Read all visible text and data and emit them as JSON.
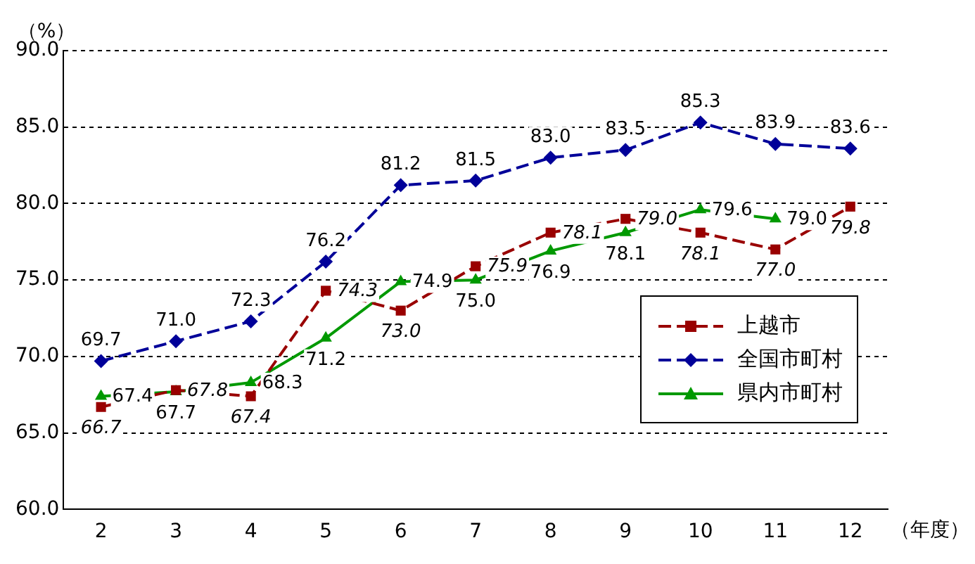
{
  "chart_data": {
    "type": "line",
    "ylabel": "（%）",
    "xlabel": "（年度）",
    "categories": [
      "2",
      "3",
      "4",
      "5",
      "6",
      "7",
      "8",
      "9",
      "10",
      "11",
      "12"
    ],
    "series": [
      {
        "name": "上越市",
        "color": "#990000",
        "marker": "square",
        "line_style": "dashed",
        "values": [
          66.7,
          67.8,
          67.4,
          74.3,
          73.0,
          75.9,
          78.1,
          79.0,
          78.1,
          77.0,
          79.8
        ],
        "value_labels": [
          "66.7",
          "67.8",
          "67.4",
          "74.3",
          "73.0",
          "75.9",
          "78.1",
          "79.0",
          "78.1",
          "77.0",
          "79.8"
        ]
      },
      {
        "name": "全国市町村",
        "color": "#000099",
        "marker": "diamond",
        "line_style": "dashed",
        "values": [
          69.7,
          71.0,
          72.3,
          76.2,
          81.2,
          81.5,
          83.0,
          83.5,
          85.3,
          83.9,
          83.6
        ],
        "value_labels": [
          "69.7",
          "71.0",
          "72.3",
          "76.2",
          "81.2",
          "81.5",
          "83.0",
          "83.5",
          "85.3",
          "83.9",
          "83.6"
        ]
      },
      {
        "name": "県内市町村",
        "color": "#009900",
        "marker": "triangle",
        "line_style": "solid",
        "values": [
          67.4,
          67.7,
          68.3,
          71.2,
          74.9,
          75.0,
          76.9,
          78.1,
          79.6,
          79.0,
          null
        ],
        "value_labels": [
          "67.4",
          "67.7",
          "68.3",
          "71.2",
          "74.9",
          "75.0",
          "76.9",
          "78.1",
          "79.6",
          "79.0",
          null
        ]
      }
    ],
    "ylim": [
      60,
      90
    ],
    "yticks": [
      {
        "value": 60,
        "label": "60.0"
      },
      {
        "value": 65,
        "label": "65.0"
      },
      {
        "value": 70,
        "label": "70.0"
      },
      {
        "value": 75,
        "label": "75.0"
      },
      {
        "value": 80,
        "label": "80.0"
      },
      {
        "value": 85,
        "label": "85.0"
      },
      {
        "value": 90,
        "label": "90.0"
      }
    ],
    "grid": "y",
    "legend": "bottom right"
  }
}
